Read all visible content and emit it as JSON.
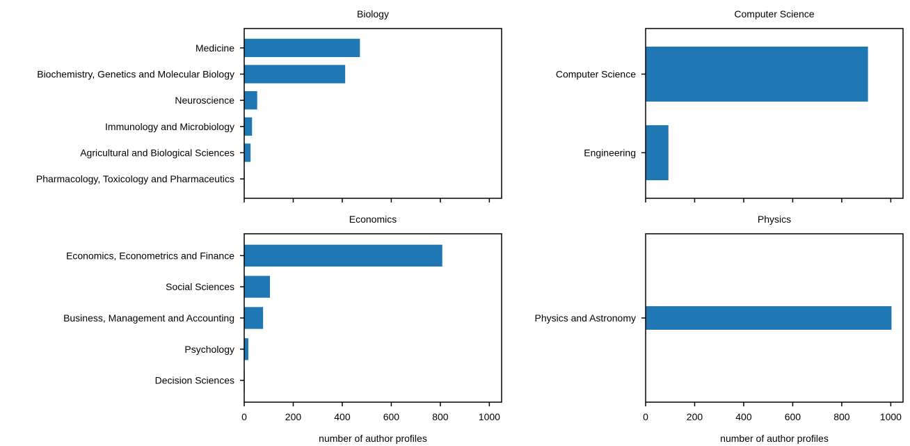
{
  "chart_data": [
    {
      "type": "bar",
      "orientation": "horizontal",
      "title": "Biology",
      "categories": [
        "Medicine",
        "Biochemistry, Genetics and Molecular Biology",
        "Neuroscience",
        "Immunology and Microbiology",
        "Agricultural and Biological Sciences",
        "Pharmacology, Toxicology and Pharmaceutics"
      ],
      "values": [
        472,
        412,
        53,
        32,
        26,
        2
      ],
      "xlim": [
        0,
        1050
      ],
      "xticks": [
        0,
        200,
        400,
        600,
        800,
        1000
      ],
      "show_tick_labels": false,
      "xlabel": "",
      "color": "#1f77b4"
    },
    {
      "type": "bar",
      "orientation": "horizontal",
      "title": "Computer Science",
      "categories": [
        "Computer Science",
        "Engineering"
      ],
      "values": [
        907,
        93
      ],
      "xlim": [
        0,
        1050
      ],
      "xticks": [
        0,
        200,
        400,
        600,
        800,
        1000
      ],
      "show_tick_labels": false,
      "xlabel": "",
      "color": "#1f77b4"
    },
    {
      "type": "bar",
      "orientation": "horizontal",
      "title": "Economics",
      "categories": [
        "Economics, Econometrics and Finance",
        "Social Sciences",
        "Business, Management and Accounting",
        "Psychology",
        "Decision Sciences"
      ],
      "values": [
        808,
        105,
        77,
        17,
        2
      ],
      "xlim": [
        0,
        1050
      ],
      "xticks": [
        0,
        200,
        400,
        600,
        800,
        1000
      ],
      "show_tick_labels": true,
      "xlabel": "number of author profiles",
      "color": "#1f77b4"
    },
    {
      "type": "bar",
      "orientation": "horizontal",
      "title": "Physics",
      "categories": [
        "Physics and Astronomy"
      ],
      "values": [
        1003
      ],
      "xlim": [
        0,
        1050
      ],
      "xticks": [
        0,
        200,
        400,
        600,
        800,
        1000
      ],
      "show_tick_labels": true,
      "xlabel": "number of author profiles",
      "color": "#1f77b4"
    }
  ]
}
